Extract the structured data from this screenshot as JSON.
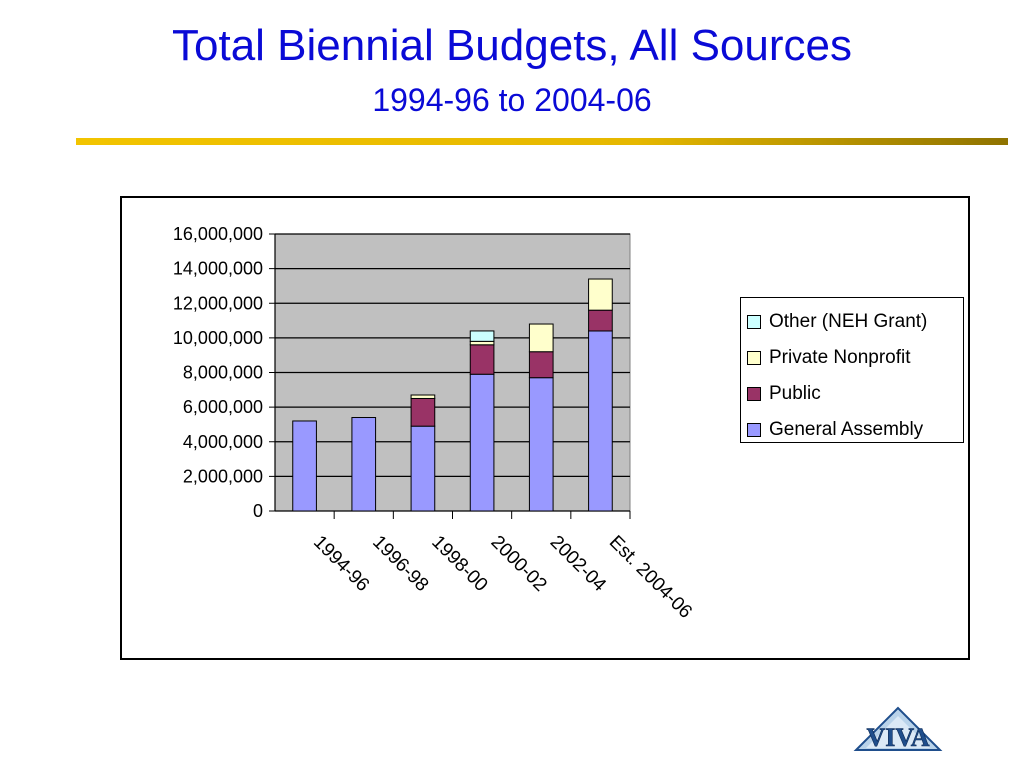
{
  "slide": {
    "title": "Total Biennial Budgets, All Sources",
    "subtitle": "1994-96 to 2004-06",
    "logo_text": "VIVA"
  },
  "colors": {
    "title": "#0a0ad6",
    "rule": "#e6b800",
    "plot_bg": "#c0c0c0",
    "general_assembly": "#9999ff",
    "public": "#993366",
    "private_nonprofit": "#ffffcc",
    "other": "#ccffff"
  },
  "chart_data": {
    "type": "bar",
    "stacked": true,
    "title": "",
    "xlabel": "",
    "ylabel": "",
    "categories": [
      "1994-96",
      "1996-98",
      "1998-00",
      "2000-02",
      "2002-04",
      "Est. 2004-06"
    ],
    "ylim": [
      0,
      16000000
    ],
    "yticks": [
      0,
      2000000,
      4000000,
      6000000,
      8000000,
      10000000,
      12000000,
      14000000,
      16000000
    ],
    "ytick_labels": [
      "0",
      "2,000,000",
      "4,000,000",
      "6,000,000",
      "8,000,000",
      "10,000,000",
      "12,000,000",
      "14,000,000",
      "16,000,000"
    ],
    "grid": true,
    "legend_position": "right",
    "series": [
      {
        "name": "General Assembly",
        "color": "#9999ff",
        "values": [
          5200000,
          5400000,
          4900000,
          7900000,
          7700000,
          10400000
        ]
      },
      {
        "name": "Public",
        "color": "#993366",
        "values": [
          0,
          0,
          1600000,
          1700000,
          1500000,
          1200000
        ]
      },
      {
        "name": "Private Nonprofit",
        "color": "#ffffcc",
        "values": [
          0,
          0,
          200000,
          200000,
          1600000,
          1800000
        ]
      },
      {
        "name": "Other (NEH Grant)",
        "color": "#ccffff",
        "values": [
          0,
          0,
          0,
          600000,
          0,
          0
        ]
      }
    ]
  }
}
